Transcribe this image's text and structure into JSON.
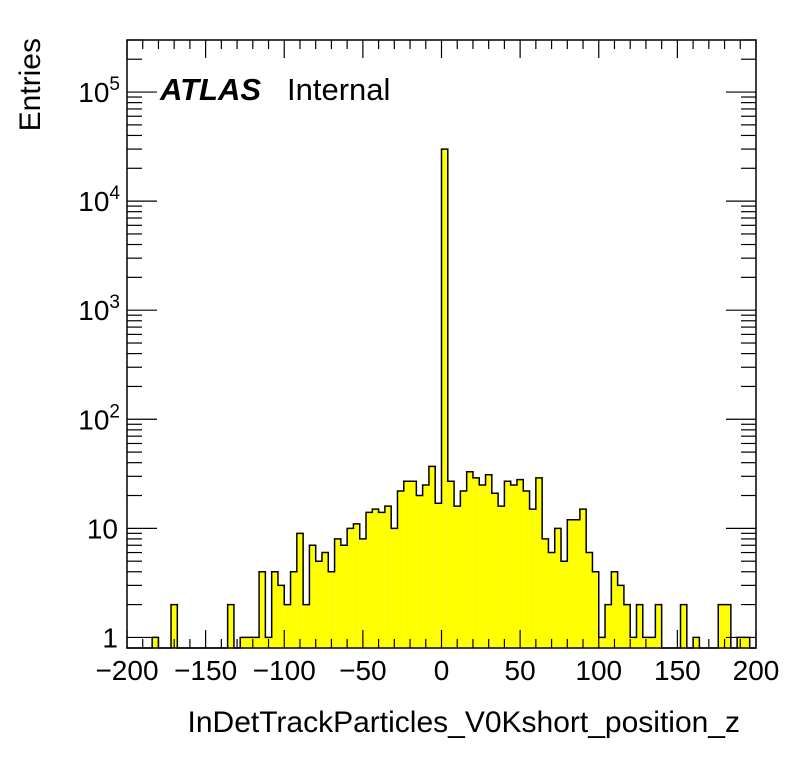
{
  "chart_data": {
    "type": "bar",
    "style": "step-histogram",
    "fill_color": "#ffff00",
    "line_color": "#000000",
    "xlabel": "InDetTrackParticles_V0Kshort_position_z",
    "ylabel": "Entries",
    "xlim": [
      -200,
      200
    ],
    "ylim": [
      0.8,
      300000
    ],
    "yscale": "log",
    "bin_width": 4,
    "x_ticks": [
      "−200",
      "−150",
      "−100",
      "−50",
      "0",
      "50",
      "100",
      "150",
      "200"
    ],
    "y_ticks": [
      {
        "value": 1,
        "base": "1",
        "exp": ""
      },
      {
        "value": 10,
        "base": "10",
        "exp": ""
      },
      {
        "value": 100,
        "base": "10",
        "exp": "2"
      },
      {
        "value": 1000,
        "base": "10",
        "exp": "3"
      },
      {
        "value": 10000,
        "base": "10",
        "exp": "4"
      },
      {
        "value": 100000,
        "base": "10",
        "exp": "5"
      }
    ],
    "bins_x_low": [
      -200,
      -196,
      -192,
      -188,
      -184,
      -180,
      -176,
      -172,
      -168,
      -164,
      -160,
      -156,
      -152,
      -148,
      -144,
      -140,
      -136,
      -132,
      -128,
      -124,
      -120,
      -116,
      -112,
      -108,
      -104,
      -100,
      -96,
      -92,
      -88,
      -84,
      -80,
      -76,
      -72,
      -68,
      -64,
      -60,
      -56,
      -52,
      -48,
      -44,
      -40,
      -36,
      -32,
      -28,
      -24,
      -20,
      -16,
      -12,
      -8,
      -4,
      0,
      4,
      8,
      12,
      16,
      20,
      24,
      28,
      32,
      36,
      40,
      44,
      48,
      52,
      56,
      60,
      64,
      68,
      72,
      76,
      80,
      84,
      88,
      92,
      96,
      100,
      104,
      108,
      112,
      116,
      120,
      124,
      128,
      132,
      136,
      140,
      144,
      148,
      152,
      156,
      160,
      164,
      168,
      172,
      176,
      180,
      184,
      188,
      192,
      196
    ],
    "values": [
      0,
      0,
      0,
      0,
      1,
      0,
      0,
      2,
      0,
      0,
      0,
      0,
      0,
      0,
      0,
      0,
      2,
      0,
      1,
      1,
      1,
      4,
      1,
      4,
      3,
      2,
      4,
      9,
      2,
      7,
      5,
      6,
      4,
      8,
      7,
      10,
      11,
      8,
      14,
      15,
      14,
      16,
      10,
      22,
      27,
      27,
      20,
      25,
      37,
      17,
      30000,
      27,
      16,
      22,
      33,
      29,
      25,
      31,
      21,
      16,
      27,
      25,
      28,
      22,
      15,
      29,
      8,
      6,
      10,
      5,
      12,
      12,
      15,
      6,
      4,
      1,
      2,
      4,
      3,
      2,
      1,
      2,
      1,
      1,
      2,
      0,
      0,
      0,
      2,
      0,
      1,
      0,
      0,
      0,
      2,
      2,
      0,
      1,
      1,
      0
    ],
    "annotations": [
      {
        "text": "ATLAS",
        "style": "bold-italic"
      },
      {
        "text": "Internal",
        "style": "normal"
      }
    ]
  }
}
